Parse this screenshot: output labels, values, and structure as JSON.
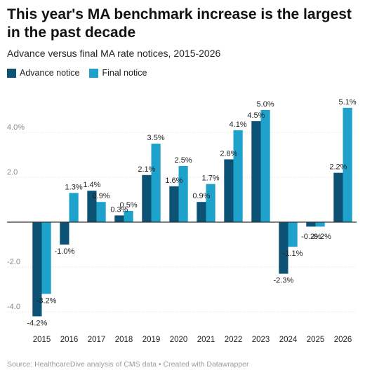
{
  "title": "This year's MA benchmark increase is the largest in the past decade",
  "subtitle": "Advance versus final MA rate notices, 2015-2026",
  "footer": "Source: HealthcareDive analysis of CMS data • Created with Datawrapper",
  "colors": {
    "advance": "#0b5275",
    "final": "#1ea2cc",
    "grid": "#dddddd",
    "axis": "#333333",
    "tick_text": "#888888"
  },
  "chart_data": {
    "type": "bar",
    "categories": [
      "2015",
      "2016",
      "2017",
      "2018",
      "2019",
      "2020",
      "2021",
      "2022",
      "2023",
      "2024",
      "2025",
      "2026"
    ],
    "series": [
      {
        "name": "Advance notice",
        "values": [
          -4.2,
          -1.0,
          1.4,
          0.3,
          2.1,
          1.6,
          0.9,
          2.8,
          4.5,
          -2.3,
          -0.2,
          2.2
        ]
      },
      {
        "name": "Final notice",
        "values": [
          -3.2,
          1.3,
          0.9,
          0.5,
          3.5,
          2.5,
          1.7,
          4.1,
          5.0,
          -1.1,
          -0.2,
          5.1
        ]
      }
    ],
    "data_labels": {
      "Advance notice": [
        "-4.2%",
        "-1.0%",
        "1.4%",
        "0.3%",
        "2.1%",
        "1.6%",
        "0.9%",
        "2.8%",
        "4.5%",
        "-2.3%",
        "-0.2%",
        "2.2%"
      ],
      "Final notice": [
        "-3.2%",
        "1.3%",
        "0.9%",
        "0.5%",
        "3.5%",
        "2.5%",
        "1.7%",
        "4.1%",
        "5.0%",
        "-1.1%",
        "-0.2%",
        "5.1%"
      ]
    },
    "yticks": [
      {
        "value": 4,
        "label": "4.0%"
      },
      {
        "value": 2,
        "label": "2.0"
      },
      {
        "value": -2,
        "label": "-2.0"
      },
      {
        "value": -4,
        "label": "-4.0"
      }
    ],
    "ylim": [
      -4.4,
      5.4
    ],
    "grid": true
  }
}
